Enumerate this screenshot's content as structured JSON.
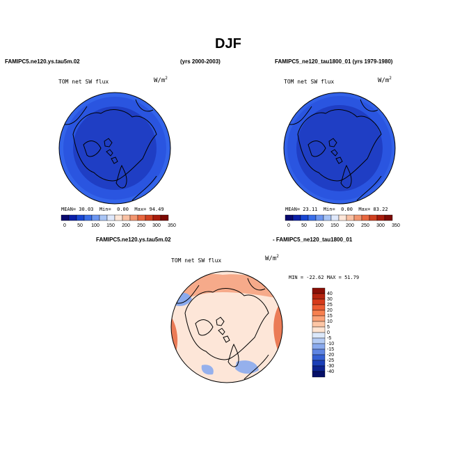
{
  "season": "DJF",
  "left_panel": {
    "case": "FAMIPC5.ne120.ys.tau5m.02",
    "years": "(yrs 2000-2003)",
    "variable": "TOM net SW flux",
    "unit_base": "W/m",
    "unit_exp": "2",
    "stats": {
      "mean_label": "MEAN=",
      "mean": "30.03",
      "min_label": "Min=",
      "min": "0.00",
      "max_label": "Max=",
      "max": "94.49"
    }
  },
  "right_panel": {
    "case": "FAMIPC5_ne120_tau1800_01 (yrs 1979-1980)",
    "variable": "TOM net SW flux",
    "unit_base": "W/m",
    "unit_exp": "2",
    "stats": {
      "mean_label": "MEAN=",
      "mean": "23.11",
      "min_label": "Min=",
      "min": "0.00",
      "max_label": "Max=",
      "max": "83.22"
    }
  },
  "diff_panel": {
    "case_a": "FAMIPC5.ne120.ys.tau5m.02",
    "case_b": "- FAMIPC5_ne120_tau1800_01",
    "variable": "TOM net SW flux",
    "unit_base": "W/m",
    "unit_exp": "2",
    "minmax": "MIN = -22.62  MAX =  51.79"
  },
  "abs_colorbar": {
    "labels": [
      "0",
      "50",
      "100",
      "150",
      "200",
      "250",
      "300",
      "350"
    ],
    "colors": [
      "#08086e",
      "#0a1fa8",
      "#1846d2",
      "#3a6ee8",
      "#6d96f0",
      "#a8c4f5",
      "#dfe8fb",
      "#fde6d8",
      "#f9c1a4",
      "#f39670",
      "#e8673f",
      "#cf4020",
      "#a81c0c",
      "#7c0a04"
    ]
  },
  "diff_colorbar": {
    "labels": [
      "40",
      "30",
      "25",
      "20",
      "15",
      "10",
      "5",
      "0",
      "-5",
      "-10",
      "-15",
      "-20",
      "-25",
      "-30",
      "-40"
    ],
    "colors": [
      "#8a0f06",
      "#b5240f",
      "#d63b1c",
      "#ec5c33",
      "#f7804f",
      "#fba278",
      "#fdc6a5",
      "#fee4d2",
      "#dce8fa",
      "#b4cbf4",
      "#8aaaee",
      "#5f85e2",
      "#3560d3",
      "#1b3fb7",
      "#0d2390",
      "#061068"
    ]
  },
  "map_colors": {
    "polar_blue": "#1f3ec4",
    "mid_blue": "#2a55e0",
    "ring_blue": "#3a6ef0",
    "diff_bg": "#fde6d8",
    "diff_warm": "#f39670",
    "diff_hot": "#e8673f",
    "diff_cool": "#8aaaee"
  }
}
